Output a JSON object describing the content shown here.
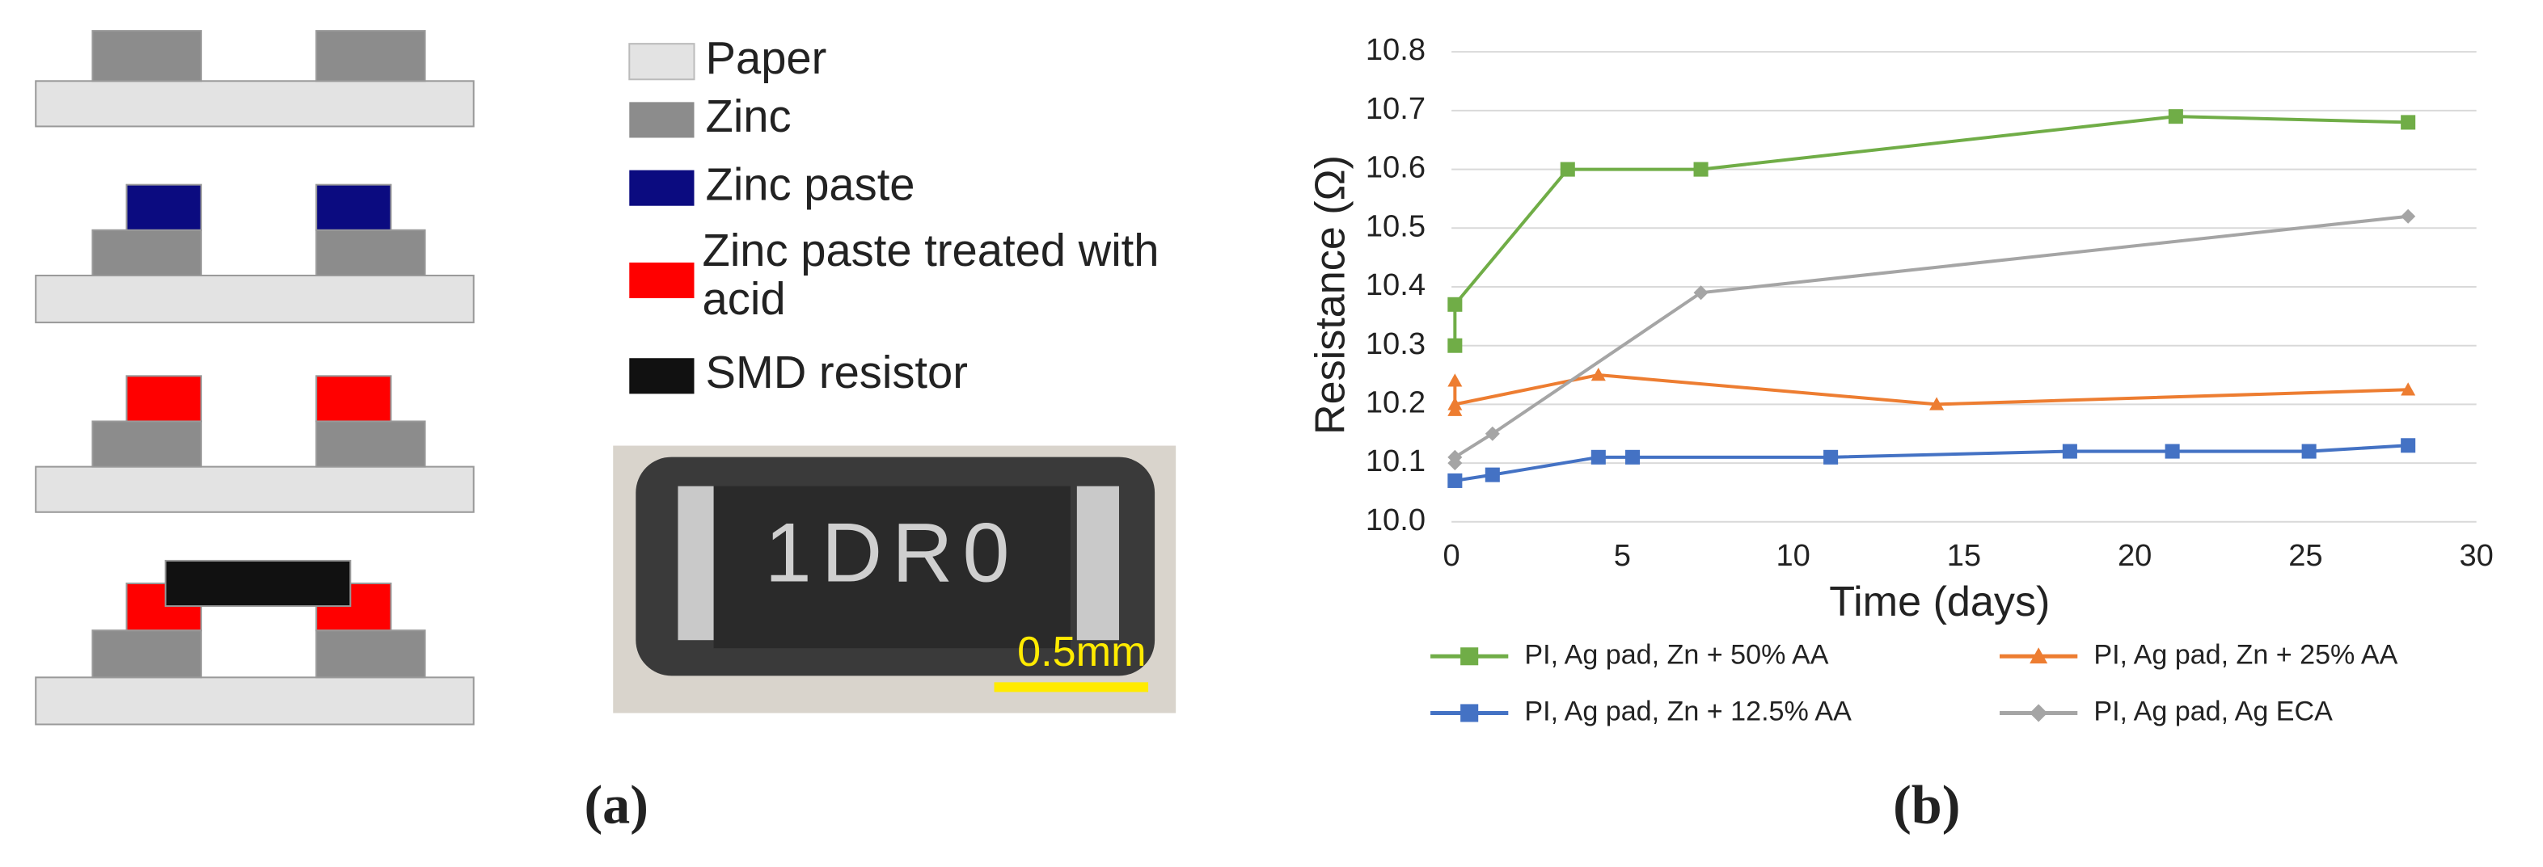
{
  "panel_labels": [
    "(a)",
    "(b)"
  ],
  "diagram": {
    "legend": [
      "Paper",
      "Zinc",
      "Zinc paste",
      "Zinc paste treated with acid",
      "SMD resistor"
    ],
    "photo": {
      "marking": "1DR0",
      "scale_bar": "0.5mm"
    }
  },
  "chart_data": {
    "type": "line",
    "x_label": "Time (days)",
    "y_label": "Resistance (Ω)",
    "xlim": [
      0,
      30
    ],
    "xticks": [
      0,
      5,
      10,
      15,
      20,
      25,
      30
    ],
    "ylim": [
      10.0,
      10.8
    ],
    "yticks": [
      {
        "value": 10.0,
        "label": "10.0"
      },
      10.1,
      10.2,
      10.3,
      10.4,
      10.5,
      10.6,
      10.7,
      10.8
    ],
    "grid": true,
    "legend": "bottom",
    "series": [
      {
        "name": "PI, Ag pad, Zn + 50% AA",
        "color": "#70ad47",
        "marker": "square",
        "x": [
          0.1,
          0.1,
          3.4,
          7.3,
          21.2,
          28
        ],
        "values": [
          10.3,
          10.37,
          10.6,
          10.6,
          10.69,
          10.68
        ]
      },
      {
        "name": "PI, Ag pad, Zn + 25% AA",
        "color": "#ed7d31",
        "marker": "triangle",
        "x": [
          0.1,
          0.1,
          0.1,
          4.3,
          14.2,
          28
        ],
        "values": [
          10.19,
          10.24,
          10.2,
          10.25,
          10.2,
          10.225
        ]
      },
      {
        "name": "PI, Ag pad, Zn + 12.5% AA",
        "color": "#4472c4",
        "marker": "square",
        "x": [
          0.1,
          1.2,
          4.3,
          5.3,
          11.1,
          18.1,
          21.1,
          25.1,
          28
        ],
        "values": [
          10.07,
          10.08,
          10.11,
          10.11,
          10.11,
          10.12,
          10.12,
          10.12,
          10.13
        ]
      },
      {
        "name": "PI, Ag pad, Ag ECA",
        "color": "#a5a5a5",
        "marker": "diamond",
        "x": [
          0.1,
          0.1,
          1.2,
          7.3,
          28
        ],
        "values": [
          10.1,
          10.11,
          10.15,
          10.39,
          10.52
        ]
      }
    ]
  }
}
